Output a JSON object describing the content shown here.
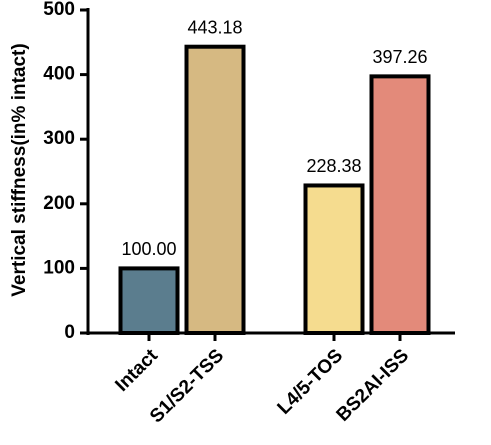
{
  "chart_data": {
    "type": "bar",
    "y_label": "Vertical stiffness(in% intact)",
    "categories": [
      "Intact",
      "S1/S2-TSS",
      "L4/5-TOS",
      "BS2AI-ISS"
    ],
    "values": [
      100,
      443.18,
      228.38,
      397.26
    ],
    "value_labels": [
      "100.00",
      "443.18",
      "228.38",
      "397.26"
    ],
    "colors": [
      "#5b7d8e",
      "#d6b982",
      "#f5dc8f",
      "#e38a7a"
    ],
    "ylim": [
      0,
      500
    ],
    "yticks": [
      0,
      100,
      200,
      300,
      400,
      500
    ]
  }
}
